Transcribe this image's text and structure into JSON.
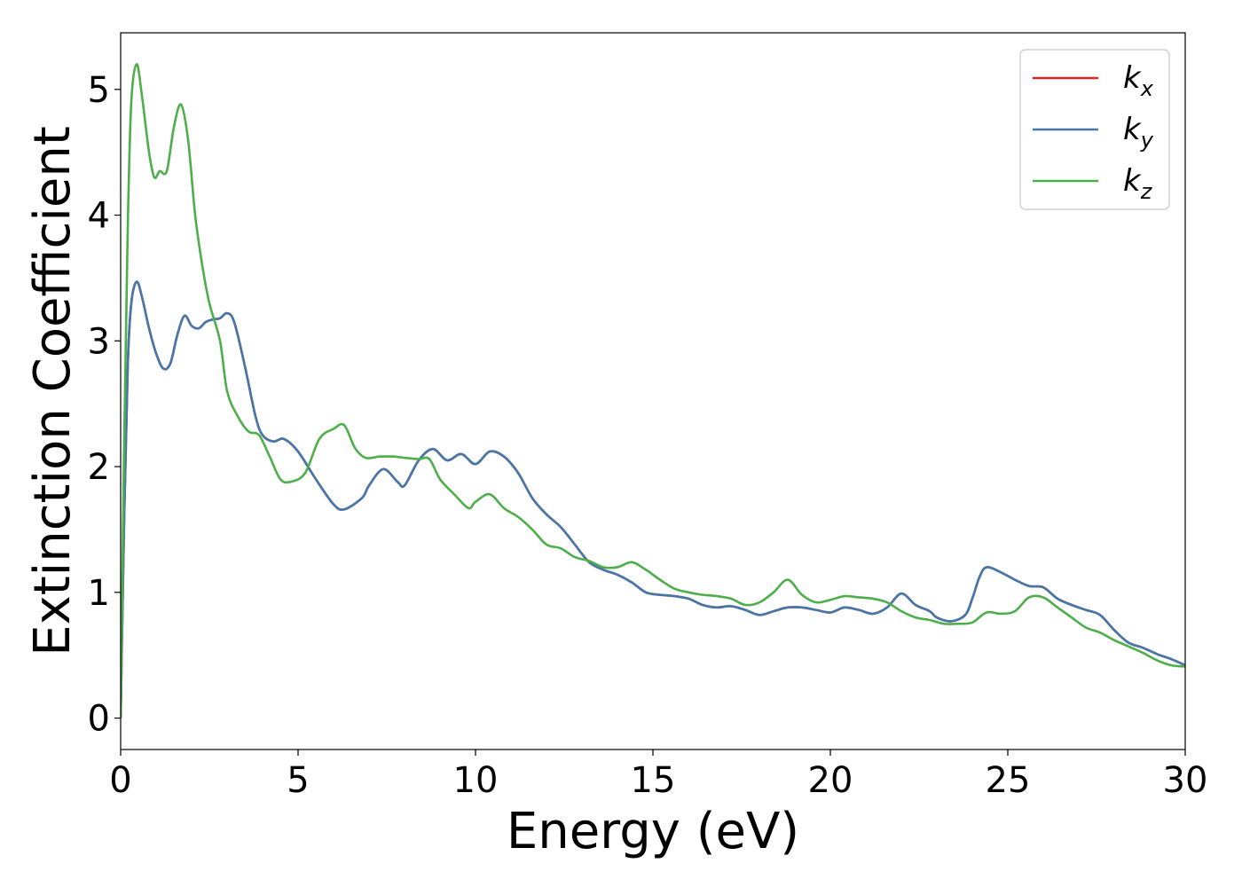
{
  "chart_data": {
    "type": "line",
    "title": "",
    "xlabel": "Energy (eV)",
    "ylabel": "Extinction Coefficient",
    "xlim": [
      0,
      30
    ],
    "ylim": [
      -0.25,
      5.45
    ],
    "xticks": [
      0,
      5,
      10,
      15,
      20,
      25,
      30
    ],
    "yticks": [
      0,
      1,
      2,
      3,
      4,
      5
    ],
    "grid": false,
    "legend_position": "top-right",
    "series": [
      {
        "name": "k",
        "subscript": "x",
        "color": "#d62728",
        "x": [
          0,
          0.1,
          0.2,
          0.3,
          0.45,
          0.6,
          0.8,
          1.0,
          1.2,
          1.4,
          1.6,
          1.8,
          2.0,
          2.2,
          2.4,
          2.6,
          2.8,
          3.0,
          3.2,
          3.5,
          3.8,
          4.0,
          4.3,
          4.6,
          5.0,
          5.5,
          6.0,
          6.3,
          6.8,
          7.0,
          7.4,
          7.8,
          8.0,
          8.4,
          8.8,
          9.2,
          9.6,
          10.0,
          10.4,
          10.8,
          11.2,
          11.6,
          12.0,
          12.4,
          12.8,
          13.2,
          13.6,
          14.0,
          14.4,
          14.8,
          15.2,
          15.6,
          16.0,
          16.4,
          16.8,
          17.2,
          17.6,
          18.0,
          18.4,
          18.8,
          19.2,
          19.6,
          20.0,
          20.4,
          20.8,
          21.2,
          21.6,
          22.0,
          22.4,
          22.8,
          23.0,
          23.4,
          23.8,
          24.0,
          24.2,
          24.4,
          24.8,
          25.2,
          25.6,
          26.0,
          26.4,
          26.8,
          27.2,
          27.6,
          28.0,
          28.4,
          28.8,
          29.2,
          29.6,
          30.0
        ],
        "y": [
          0.0,
          1.6,
          2.8,
          3.3,
          3.47,
          3.35,
          3.1,
          2.9,
          2.78,
          2.82,
          3.05,
          3.2,
          3.12,
          3.1,
          3.15,
          3.17,
          3.18,
          3.22,
          3.15,
          2.8,
          2.4,
          2.25,
          2.2,
          2.22,
          2.12,
          1.9,
          1.7,
          1.66,
          1.75,
          1.85,
          1.98,
          1.88,
          1.85,
          2.05,
          2.14,
          2.05,
          2.1,
          2.02,
          2.12,
          2.08,
          1.95,
          1.75,
          1.62,
          1.52,
          1.38,
          1.24,
          1.18,
          1.14,
          1.08,
          1.0,
          0.98,
          0.97,
          0.95,
          0.9,
          0.88,
          0.89,
          0.86,
          0.82,
          0.85,
          0.88,
          0.88,
          0.86,
          0.84,
          0.88,
          0.86,
          0.83,
          0.88,
          0.99,
          0.9,
          0.85,
          0.8,
          0.77,
          0.82,
          0.95,
          1.12,
          1.2,
          1.16,
          1.1,
          1.05,
          1.04,
          0.95,
          0.9,
          0.86,
          0.82,
          0.7,
          0.6,
          0.56,
          0.51,
          0.47,
          0.42
        ]
      },
      {
        "name": "k",
        "subscript": "y",
        "color": "#4477aa",
        "x": [
          0,
          0.1,
          0.2,
          0.3,
          0.45,
          0.6,
          0.8,
          1.0,
          1.2,
          1.4,
          1.6,
          1.8,
          2.0,
          2.2,
          2.4,
          2.6,
          2.8,
          3.0,
          3.2,
          3.5,
          3.8,
          4.0,
          4.3,
          4.6,
          5.0,
          5.5,
          6.0,
          6.3,
          6.8,
          7.0,
          7.4,
          7.8,
          8.0,
          8.4,
          8.8,
          9.2,
          9.6,
          10.0,
          10.4,
          10.8,
          11.2,
          11.6,
          12.0,
          12.4,
          12.8,
          13.2,
          13.6,
          14.0,
          14.4,
          14.8,
          15.2,
          15.6,
          16.0,
          16.4,
          16.8,
          17.2,
          17.6,
          18.0,
          18.4,
          18.8,
          19.2,
          19.6,
          20.0,
          20.4,
          20.8,
          21.2,
          21.6,
          22.0,
          22.4,
          22.8,
          23.0,
          23.4,
          23.8,
          24.0,
          24.2,
          24.4,
          24.8,
          25.2,
          25.6,
          26.0,
          26.4,
          26.8,
          27.2,
          27.6,
          28.0,
          28.4,
          28.8,
          29.2,
          29.6,
          30.0
        ],
        "y": [
          0.0,
          1.6,
          2.8,
          3.3,
          3.47,
          3.35,
          3.1,
          2.9,
          2.78,
          2.82,
          3.05,
          3.2,
          3.12,
          3.1,
          3.15,
          3.17,
          3.18,
          3.22,
          3.15,
          2.8,
          2.4,
          2.25,
          2.2,
          2.22,
          2.12,
          1.9,
          1.7,
          1.66,
          1.75,
          1.85,
          1.98,
          1.88,
          1.85,
          2.05,
          2.14,
          2.05,
          2.1,
          2.02,
          2.12,
          2.08,
          1.95,
          1.75,
          1.62,
          1.52,
          1.38,
          1.24,
          1.18,
          1.14,
          1.08,
          1.0,
          0.98,
          0.97,
          0.95,
          0.9,
          0.88,
          0.89,
          0.86,
          0.82,
          0.85,
          0.88,
          0.88,
          0.86,
          0.84,
          0.88,
          0.86,
          0.83,
          0.88,
          0.99,
          0.9,
          0.85,
          0.8,
          0.77,
          0.82,
          0.95,
          1.12,
          1.2,
          1.16,
          1.1,
          1.05,
          1.04,
          0.95,
          0.9,
          0.86,
          0.82,
          0.7,
          0.6,
          0.56,
          0.51,
          0.47,
          0.42
        ]
      },
      {
        "name": "k",
        "subscript": "z",
        "color": "#4daf4a",
        "x": [
          0,
          0.1,
          0.2,
          0.3,
          0.45,
          0.6,
          0.8,
          0.95,
          1.1,
          1.3,
          1.5,
          1.7,
          1.9,
          2.1,
          2.3,
          2.5,
          2.8,
          3.0,
          3.3,
          3.6,
          3.9,
          4.2,
          4.5,
          4.8,
          5.2,
          5.6,
          6.0,
          6.3,
          6.6,
          6.9,
          7.3,
          7.7,
          8.0,
          8.4,
          8.7,
          9.0,
          9.4,
          9.8,
          10.0,
          10.4,
          10.8,
          11.2,
          11.6,
          12.0,
          12.4,
          12.8,
          13.2,
          13.6,
          14.0,
          14.4,
          14.8,
          15.2,
          15.6,
          16.0,
          16.4,
          16.8,
          17.2,
          17.6,
          18.0,
          18.4,
          18.8,
          19.2,
          19.6,
          20.0,
          20.4,
          20.8,
          21.2,
          21.6,
          22.0,
          22.4,
          22.8,
          23.2,
          23.6,
          24.0,
          24.4,
          24.8,
          25.2,
          25.6,
          26.0,
          26.4,
          26.8,
          27.2,
          27.6,
          28.0,
          28.4,
          28.8,
          29.2,
          29.6,
          30.0
        ],
        "y": [
          0.0,
          2.2,
          3.9,
          4.9,
          5.2,
          4.95,
          4.5,
          4.3,
          4.35,
          4.35,
          4.7,
          4.88,
          4.6,
          4.0,
          3.6,
          3.3,
          3.0,
          2.6,
          2.4,
          2.28,
          2.25,
          2.08,
          1.9,
          1.88,
          1.95,
          2.22,
          2.3,
          2.33,
          2.15,
          2.07,
          2.08,
          2.08,
          2.07,
          2.06,
          2.06,
          1.9,
          1.78,
          1.67,
          1.72,
          1.78,
          1.67,
          1.6,
          1.5,
          1.38,
          1.35,
          1.28,
          1.25,
          1.2,
          1.2,
          1.24,
          1.18,
          1.1,
          1.03,
          1.0,
          0.98,
          0.97,
          0.95,
          0.9,
          0.92,
          1.0,
          1.1,
          0.98,
          0.92,
          0.94,
          0.97,
          0.96,
          0.95,
          0.92,
          0.85,
          0.8,
          0.78,
          0.75,
          0.75,
          0.76,
          0.84,
          0.83,
          0.85,
          0.96,
          0.96,
          0.88,
          0.8,
          0.72,
          0.68,
          0.62,
          0.57,
          0.52,
          0.46,
          0.42,
          0.41
        ]
      }
    ]
  }
}
